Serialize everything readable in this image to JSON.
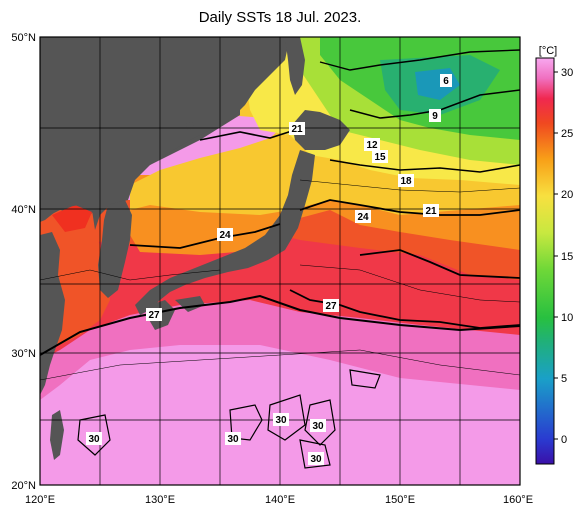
{
  "title": "Daily SSTs 18 Jul. 2023.",
  "colorbar": {
    "unit": "[°C]",
    "ticks": [
      "30",
      "25",
      "20",
      "15",
      "10",
      "5",
      "0"
    ],
    "stops": [
      {
        "t": -2,
        "color": "#3a10a8"
      },
      {
        "t": 0,
        "color": "#2a3ad0"
      },
      {
        "t": 5,
        "color": "#1aa0c8"
      },
      {
        "t": 8,
        "color": "#20b07a"
      },
      {
        "t": 10,
        "color": "#28c040"
      },
      {
        "t": 14,
        "color": "#70d838"
      },
      {
        "t": 17,
        "color": "#c8e840"
      },
      {
        "t": 20,
        "color": "#f8e040"
      },
      {
        "t": 23,
        "color": "#f8a018"
      },
      {
        "t": 26,
        "color": "#f04820"
      },
      {
        "t": 28,
        "color": "#f02850"
      },
      {
        "t": 29.5,
        "color": "#f070c0"
      },
      {
        "t": 31,
        "color": "#f8a8f0"
      }
    ]
  },
  "axes": {
    "lat_labels": [
      "50°N",
      "40°N",
      "30°N",
      "20°N"
    ],
    "lon_labels": [
      "120°E",
      "130°E",
      "140°E",
      "150°E",
      "160°E"
    ]
  },
  "contour_labels": [
    "6",
    "9",
    "12",
    "15",
    "18",
    "21",
    "21",
    "24",
    "24",
    "27",
    "27",
    "30",
    "30",
    "30",
    "30",
    "30"
  ],
  "colors": {
    "land": "#555555",
    "frame": "#000000",
    "grid": "#000000"
  }
}
